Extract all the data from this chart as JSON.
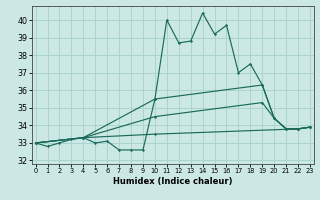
{
  "xlabel": "Humidex (Indice chaleur)",
  "xlim": [
    -0.3,
    23.3
  ],
  "ylim": [
    31.8,
    40.8
  ],
  "yticks": [
    32,
    33,
    34,
    35,
    36,
    37,
    38,
    39,
    40
  ],
  "xticks": [
    0,
    1,
    2,
    3,
    4,
    5,
    6,
    7,
    8,
    9,
    10,
    11,
    12,
    13,
    14,
    15,
    16,
    17,
    18,
    19,
    20,
    21,
    22,
    23
  ],
  "bg_color": "#cce8e5",
  "grid_color": "#aad4cf",
  "line_color": "#1a6b5a",
  "lines": [
    {
      "x": [
        0,
        1,
        2,
        3,
        4,
        5,
        6,
        7,
        8,
        9,
        10,
        11,
        12,
        13,
        14,
        15,
        16,
        17,
        18,
        19,
        20,
        21,
        22,
        23
      ],
      "y": [
        33.0,
        32.8,
        33.0,
        33.2,
        33.3,
        33.0,
        33.1,
        32.6,
        32.6,
        32.6,
        35.5,
        40.0,
        38.7,
        38.8,
        40.4,
        39.2,
        39.7,
        37.0,
        37.5,
        36.3,
        34.4,
        33.8,
        33.8,
        33.9
      ]
    },
    {
      "x": [
        0,
        4,
        10,
        19,
        20,
        21,
        22,
        23
      ],
      "y": [
        33.0,
        33.3,
        35.5,
        36.3,
        34.4,
        33.8,
        33.8,
        33.9
      ]
    },
    {
      "x": [
        0,
        4,
        10,
        19,
        20,
        21,
        22,
        23
      ],
      "y": [
        33.0,
        33.3,
        34.5,
        35.3,
        34.4,
        33.8,
        33.8,
        33.9
      ]
    },
    {
      "x": [
        0,
        4,
        10,
        22,
        23
      ],
      "y": [
        33.0,
        33.3,
        33.5,
        33.8,
        33.9
      ]
    }
  ]
}
